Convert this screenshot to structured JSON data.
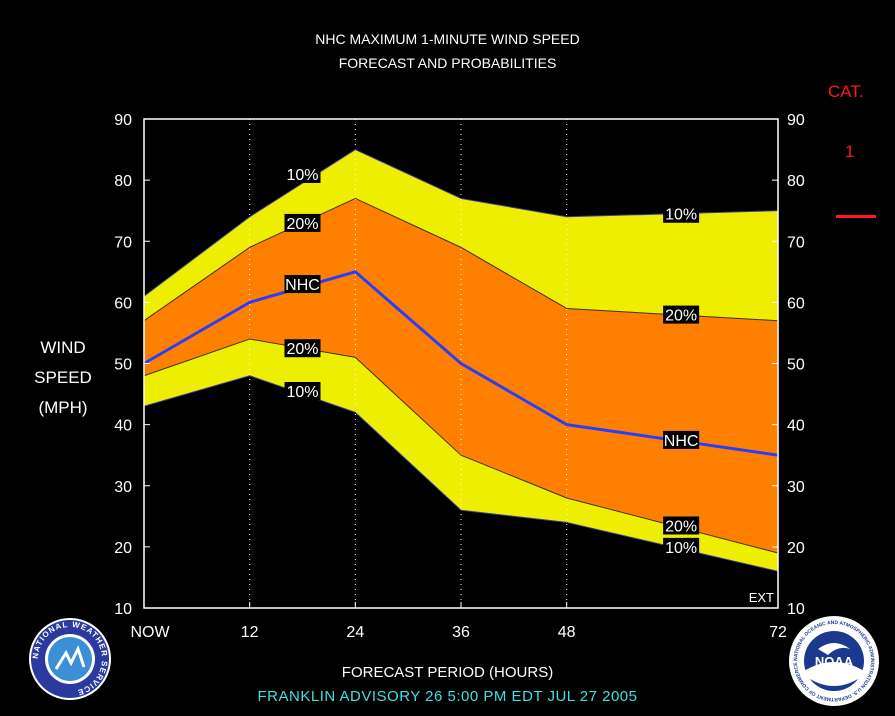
{
  "header": {
    "title_line1": "NHC MAXIMUM 1-MINUTE WIND SPEED",
    "title_line2": "FORECAST AND PROBABILITIES"
  },
  "y_axis_title": [
    "WIND",
    "SPEED",
    "(MPH)"
  ],
  "x_axis_title": "FORECAST PERIOD (HOURS)",
  "advisory": "FRANKLIN   ADVISORY  26 5:00  PM  EDT  JUL 27  2005",
  "category": {
    "label": "CAT.",
    "value": "1",
    "color": "#ff1a1a"
  },
  "ext_label": "EXT",
  "logos": {
    "nws_text": "NATIONAL WEATHER SERVICE",
    "noaa_text": "NOAA",
    "noaa_ring_text": "NATIONAL OCEANIC AND ATMOSPHERIC ADMINISTRATION U.S. DEPARTMENT OF COMMERCE"
  },
  "colors": {
    "background": "#000000",
    "outer_band": "#eeee00",
    "inner_band": "#ff8000",
    "nhc_line": "#2a3cff",
    "grid": "#ffffff"
  },
  "chart_data": {
    "type": "area",
    "title": "NHC MAXIMUM 1-MINUTE WIND SPEED FORECAST AND PROBABILITIES",
    "xlabel": "FORECAST PERIOD (HOURS)",
    "ylabel": "WIND SPEED (MPH)",
    "x": [
      0,
      12,
      24,
      36,
      48,
      72
    ],
    "x_tick_labels": [
      "NOW",
      "12",
      "24",
      "36",
      "48",
      "72"
    ],
    "xlim": [
      0,
      72
    ],
    "ylim": [
      10,
      90
    ],
    "y_ticks": [
      10,
      20,
      30,
      40,
      50,
      60,
      70,
      80,
      90
    ],
    "grid": "dotted vertical lines at 12, 24, 36, 48",
    "series": [
      {
        "name": "10%",
        "role": "upper",
        "values": [
          61,
          74,
          85,
          77,
          74,
          75
        ]
      },
      {
        "name": "20%",
        "role": "upper",
        "values": [
          57,
          69,
          77,
          69,
          59,
          57
        ]
      },
      {
        "name": "NHC",
        "role": "forecast",
        "values": [
          50,
          60,
          65,
          50,
          40,
          35
        ]
      },
      {
        "name": "20%",
        "role": "lower",
        "values": [
          48,
          54,
          51,
          35,
          28,
          19
        ]
      },
      {
        "name": "10%",
        "role": "lower",
        "values": [
          43,
          48,
          42,
          26,
          24,
          16
        ]
      }
    ],
    "annotations": [
      {
        "text": "10%",
        "x": 18,
        "y": 81
      },
      {
        "text": "20%",
        "x": 18,
        "y": 73
      },
      {
        "text": "NHC",
        "x": 18,
        "y": 63
      },
      {
        "text": "20%",
        "x": 18,
        "y": 52.5
      },
      {
        "text": "10%",
        "x": 18,
        "y": 45.5
      },
      {
        "text": "10%",
        "x": 61,
        "y": 74.5
      },
      {
        "text": "20%",
        "x": 61,
        "y": 58
      },
      {
        "text": "NHC",
        "x": 61,
        "y": 37.5
      },
      {
        "text": "20%",
        "x": 61,
        "y": 23.5
      },
      {
        "text": "10%",
        "x": 61,
        "y": 20
      }
    ]
  }
}
